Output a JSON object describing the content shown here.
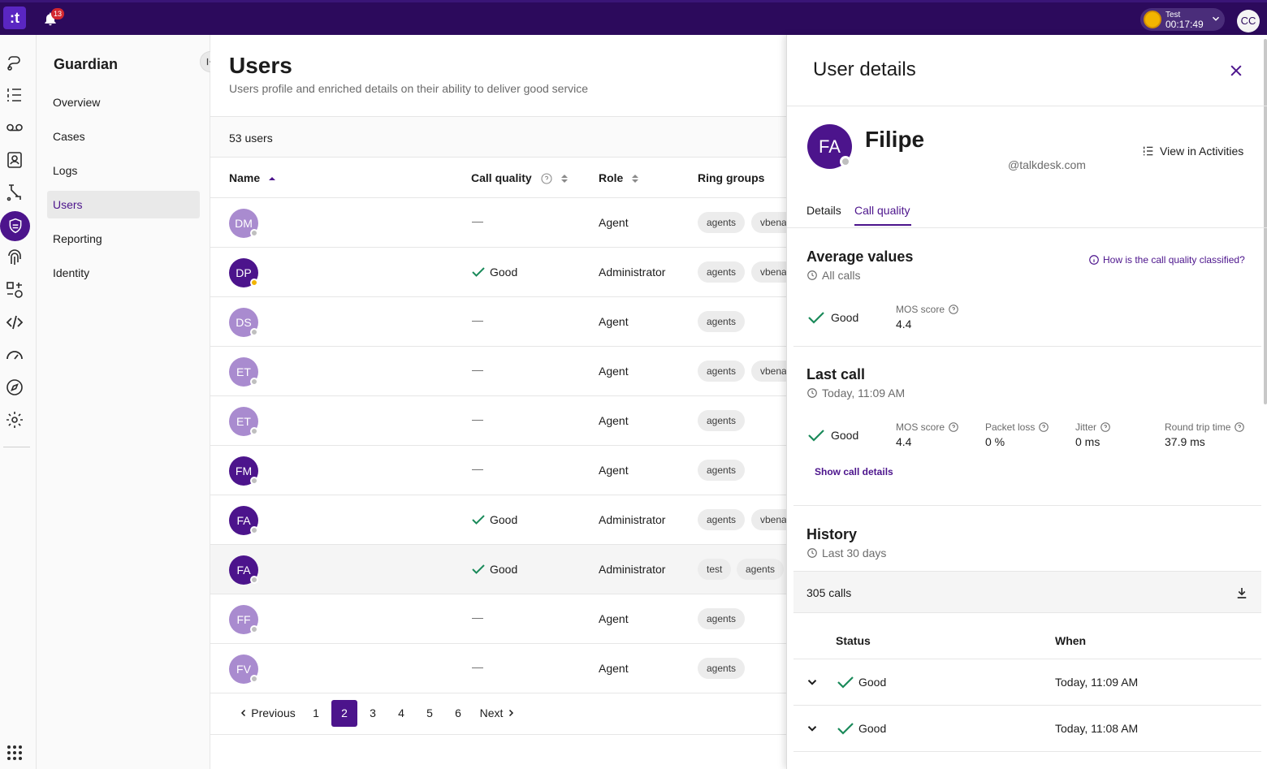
{
  "topbar": {
    "logo": ":t",
    "notifications_count": "13",
    "timer_label": "Test",
    "timer_time": "00:17:49",
    "user_initials": "CC"
  },
  "nav": {
    "title": "Guardian",
    "items": [
      {
        "label": "Overview"
      },
      {
        "label": "Cases"
      },
      {
        "label": "Logs"
      },
      {
        "label": "Users"
      },
      {
        "label": "Reporting"
      },
      {
        "label": "Identity"
      }
    ],
    "active": "Users"
  },
  "users_page": {
    "title": "Users",
    "subtitle": "Users profile and enriched details on their ability to deliver good service",
    "count": "53 users",
    "columns": {
      "name": "Name",
      "call_quality": "Call quality",
      "role": "Role",
      "ring_groups": "Ring groups"
    },
    "rows": [
      {
        "initials": "DM",
        "call_quality": "—",
        "role": "Agent",
        "chips": [
          "agents",
          "vbena"
        ]
      },
      {
        "initials": "DP",
        "call_quality": "Good",
        "role": "Administrator",
        "chips": [
          "agents",
          "vbena"
        ]
      },
      {
        "initials": "DS",
        "call_quality": "—",
        "role": "Agent",
        "chips": [
          "agents"
        ]
      },
      {
        "initials": "ET",
        "call_quality": "—",
        "role": "Agent",
        "chips": [
          "agents",
          "vbena"
        ]
      },
      {
        "initials": "ET",
        "call_quality": "—",
        "role": "Agent",
        "chips": [
          "agents"
        ]
      },
      {
        "initials": "FM",
        "call_quality": "—",
        "role": "Agent",
        "chips": [
          "agents"
        ]
      },
      {
        "initials": "FA",
        "call_quality": "Good",
        "role": "Administrator",
        "chips": [
          "agents",
          "vbena"
        ]
      },
      {
        "initials": "FA",
        "call_quality": "Good",
        "role": "Administrator",
        "chips": [
          "test",
          "agents"
        ]
      },
      {
        "initials": "FF",
        "call_quality": "—",
        "role": "Agent",
        "chips": [
          "agents"
        ]
      },
      {
        "initials": "FV",
        "call_quality": "—",
        "role": "Agent",
        "chips": [
          "agents"
        ]
      }
    ],
    "pagination": {
      "previous": "Previous",
      "next": "Next",
      "pages": [
        "1",
        "2",
        "3",
        "4",
        "5",
        "6"
      ],
      "current": "2"
    }
  },
  "details": {
    "title": "User details",
    "initials": "FA",
    "name": "Filipe",
    "email": "@talkdesk.com",
    "view_activities": "View in Activities",
    "tabs": [
      {
        "label": "Details"
      },
      {
        "label": "Call quality"
      }
    ],
    "active_tab": "Call quality",
    "average": {
      "title": "Average values",
      "subtitle": "All calls",
      "how_link": "How is the call quality classified?",
      "quality": "Good",
      "mos_label": "MOS score",
      "mos_value": "4.4"
    },
    "last_call": {
      "title": "Last call",
      "subtitle": "Today, 11:09 AM",
      "quality": "Good",
      "metrics": [
        {
          "label": "MOS score",
          "value": "4.4"
        },
        {
          "label": "Packet loss",
          "value": "0 %"
        },
        {
          "label": "Jitter",
          "value": "0 ms"
        },
        {
          "label": "Round trip time",
          "value": "37.9 ms"
        }
      ],
      "show_details": "Show call details"
    },
    "history": {
      "title": "History",
      "subtitle": "Last 30 days",
      "calls": "305 calls",
      "columns": {
        "status": "Status",
        "when": "When"
      },
      "rows": [
        {
          "status": "Good",
          "when": "Today, 11:09 AM"
        },
        {
          "status": "Good",
          "when": "Today, 11:08 AM"
        }
      ]
    }
  },
  "colors": {
    "brand": "#4c148c",
    "topbar": "#2c0a5c",
    "good": "#1a8a5a",
    "avatar_light": "#a98bcf"
  }
}
